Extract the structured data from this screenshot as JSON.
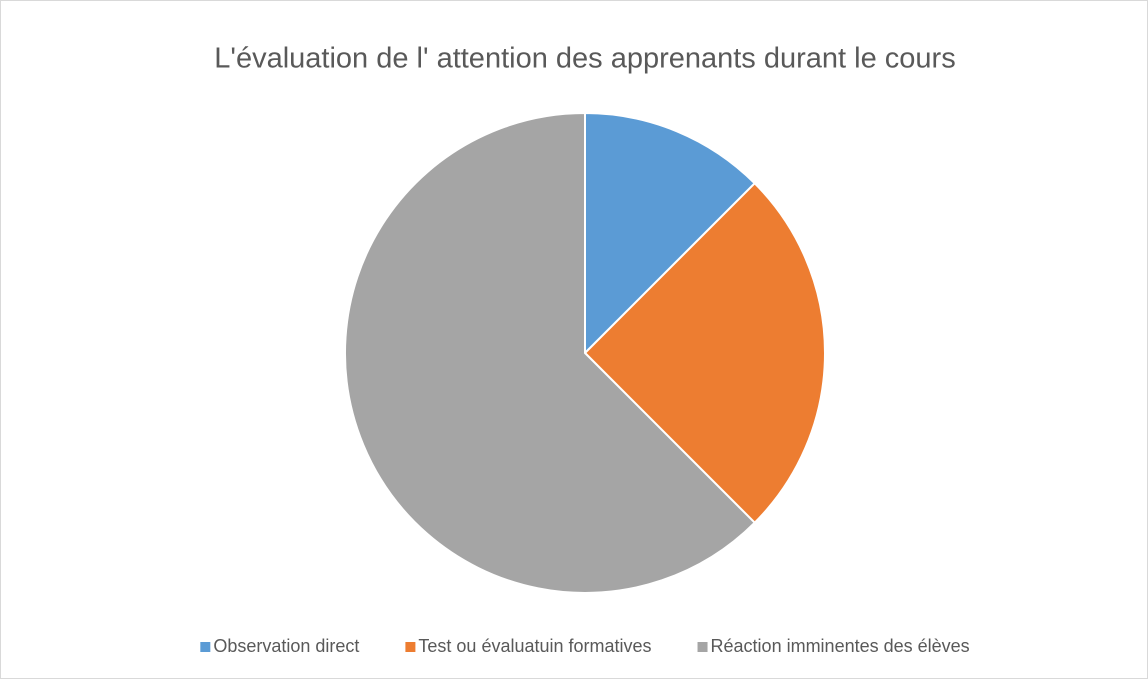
{
  "chart_data": {
    "type": "pie",
    "title": "L'évaluation de l' attention des apprenants durant le cours",
    "categories": [
      "Observation direct",
      "Test ou évaluatuin formatives",
      "Réaction imminentes des élèves"
    ],
    "values": [
      12.5,
      25,
      62.5
    ],
    "colors": [
      "#5b9bd5",
      "#ed7d31",
      "#a5a5a5"
    ],
    "legend": "bottom"
  }
}
